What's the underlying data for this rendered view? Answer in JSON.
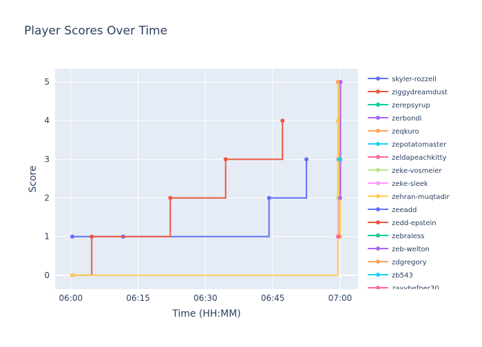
{
  "chart_data": {
    "type": "line",
    "line_shape": "step (hv)",
    "title": "Player Scores Over Time",
    "xlabel": "Time (HH:MM)",
    "ylabel": "Score",
    "xlim": [
      "05:56:30",
      "07:04:00"
    ],
    "ylim": [
      -0.36,
      5.34
    ],
    "x_ticks": [
      "06:00",
      "06:15",
      "06:30",
      "06:45",
      "07:00"
    ],
    "y_ticks": [
      0,
      1,
      2,
      3,
      4,
      5
    ],
    "grid": true,
    "legend_placement": "right",
    "plot_bg": "#e5ecf6",
    "series": [
      {
        "name": "skyler-rozzell",
        "color": "#636efa",
        "points": [
          [
            "06:00:20",
            1
          ],
          [
            "06:11:40",
            1
          ],
          [
            "06:44:10",
            2
          ],
          [
            "06:52:30",
            3
          ]
        ]
      },
      {
        "name": "ziggydreamdust",
        "color": "#EF553B",
        "points": [
          [
            "06:00:20",
            0
          ],
          [
            "06:04:40",
            1
          ],
          [
            "06:22:10",
            2
          ],
          [
            "06:34:30",
            3
          ],
          [
            "06:47:10",
            4
          ]
        ]
      },
      {
        "name": "zerepsyrup",
        "color": "#00cc96",
        "points": [
          [
            "06:59:40",
            3
          ],
          [
            "06:59:50",
            3
          ]
        ]
      },
      {
        "name": "zerbondi",
        "color": "#ab63fa",
        "points": [
          [
            "06:59:40",
            1
          ],
          [
            "06:59:50",
            2
          ],
          [
            "07:00:00",
            3
          ],
          [
            "07:00:05",
            5
          ]
        ]
      },
      {
        "name": "zeqkuro",
        "color": "#FFA15A",
        "points": [
          [
            "06:59:30",
            3
          ],
          [
            "06:59:35",
            5
          ]
        ]
      },
      {
        "name": "zepotatomaster",
        "color": "#19d3f3",
        "points": [
          [
            "06:59:40",
            3
          ]
        ]
      },
      {
        "name": "zeldapeachkitty",
        "color": "#FF6692",
        "points": [
          [
            "06:59:35",
            5
          ]
        ]
      },
      {
        "name": "zeke-vosmeier",
        "color": "#B6E880",
        "points": [
          [
            "06:59:30",
            2
          ],
          [
            "06:59:35",
            3
          ]
        ]
      },
      {
        "name": "zeke-sleek",
        "color": "#FF97FF",
        "points": [
          [
            "06:59:30",
            1
          ],
          [
            "06:59:40",
            3
          ],
          [
            "06:59:50",
            4
          ]
        ]
      },
      {
        "name": "zehran-muqtadir",
        "color": "#FECB52",
        "points": [
          [
            "06:00:20",
            0
          ],
          [
            "06:59:30",
            4
          ],
          [
            "06:59:35",
            5
          ],
          [
            "06:59:45",
            2
          ],
          [
            "07:00:00",
            1
          ]
        ]
      },
      {
        "name": "zeeadd",
        "color": "#636efa",
        "points": [
          [
            "06:59:50",
            3
          ]
        ]
      },
      {
        "name": "zedd-epstein",
        "color": "#EF553B",
        "points": [
          [
            "06:59:40",
            1
          ]
        ]
      },
      {
        "name": "zebraless",
        "color": "#00cc96",
        "points": [
          [
            "07:00:00",
            3
          ]
        ]
      },
      {
        "name": "zeb-welton",
        "color": "#ab63fa",
        "points": [
          [
            "07:00:00",
            2
          ],
          [
            "07:00:05",
            5
          ]
        ]
      },
      {
        "name": "zdgregory",
        "color": "#FFA15A",
        "points": [
          [
            "06:59:30",
            5
          ]
        ]
      },
      {
        "name": "zb543",
        "color": "#19d3f3",
        "points": [
          [
            "06:59:50",
            3
          ]
        ]
      },
      {
        "name": "zayyhefner30",
        "color": "#FF6692",
        "points": [
          [
            "06:59:35",
            1
          ]
        ]
      }
    ]
  }
}
